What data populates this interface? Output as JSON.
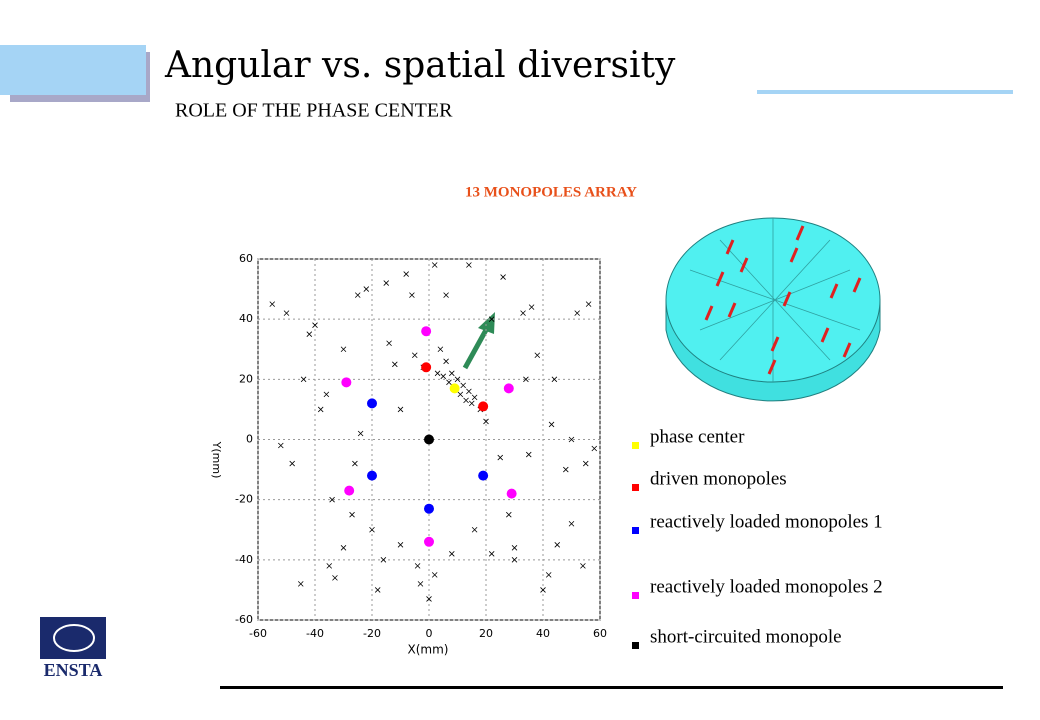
{
  "header": {
    "title": "Angular vs. spatial diversity",
    "subtitle": "ROLE OF THE PHASE CENTER"
  },
  "logo": {
    "text": "ENSTA"
  },
  "chart_data": {
    "type": "scatter",
    "title": "13 MONOPOLES ARRAY",
    "x_label": "X(mm)",
    "y_label": "Y(mm)",
    "xlim": [
      -60,
      60
    ],
    "xticks": [
      -60,
      -40,
      -20,
      0,
      20,
      40,
      60
    ],
    "ylim": [
      -60,
      60
    ],
    "yticks": [
      -60,
      -40,
      -20,
      0,
      20,
      40,
      60
    ],
    "grid": true,
    "series": [
      {
        "color": "#000000",
        "marker": "x",
        "x": [
          -55,
          -50,
          -45,
          -40,
          -38,
          -35,
          -33,
          -30,
          -27,
          -25,
          -22,
          -20,
          -18,
          -15,
          -12,
          -10,
          -8,
          -5,
          -3,
          0,
          2,
          4,
          6,
          8,
          10,
          12,
          14,
          16,
          18,
          20,
          22,
          25,
          28,
          30,
          33,
          35,
          38,
          40,
          43,
          45,
          48,
          50,
          52,
          55,
          58,
          -48,
          -42,
          -36,
          -30,
          -24,
          -16,
          -10,
          -6,
          2,
          8,
          14,
          22,
          30,
          36,
          44,
          50,
          56,
          -52,
          -44,
          -34,
          -26,
          -14,
          -4,
          6,
          16,
          26,
          34,
          42,
          54,
          3,
          5,
          7,
          9,
          11,
          13,
          15,
          -2
        ],
        "values": [
          45,
          42,
          -48,
          38,
          10,
          -42,
          -46,
          30,
          -25,
          48,
          50,
          -30,
          -50,
          52,
          25,
          -35,
          55,
          28,
          -48,
          -53,
          -45,
          30,
          26,
          22,
          20,
          18,
          16,
          14,
          10,
          6,
          40,
          -6,
          -25,
          -40,
          42,
          -5,
          28,
          -50,
          5,
          -35,
          -10,
          0,
          42,
          -8,
          -3,
          -8,
          35,
          15,
          -36,
          2,
          -40,
          10,
          48,
          58,
          -38,
          58,
          -38,
          -36,
          44,
          20,
          -28,
          45,
          -2,
          20,
          -20,
          -8,
          32,
          -42,
          48,
          -30,
          54,
          20,
          -45,
          -42,
          22,
          21,
          19,
          17,
          15,
          13,
          12,
          24
        ]
      },
      {
        "name": "phase center",
        "color": "#ffff00",
        "marker": "dot",
        "x": [
          9
        ],
        "values": [
          17
        ]
      },
      {
        "name": "driven monopoles",
        "color": "#ff0000",
        "marker": "dot",
        "x": [
          -1,
          19
        ],
        "values": [
          24,
          11
        ]
      },
      {
        "name": "reactively loaded monopoles 1",
        "color": "#0000ff",
        "marker": "dot",
        "x": [
          -20,
          -20,
          19,
          0
        ],
        "values": [
          12,
          -12,
          -12,
          -23
        ]
      },
      {
        "name": "reactively loaded monopoles 2",
        "color": "#ff00ff",
        "marker": "dot",
        "x": [
          -29,
          -1,
          28,
          -28,
          29,
          0
        ],
        "values": [
          19,
          36,
          17,
          -17,
          -18,
          -34
        ]
      },
      {
        "name": "short-circuited monopole",
        "color": "#000000",
        "marker": "dot",
        "x": [
          0
        ],
        "values": [
          0
        ]
      }
    ]
  }
}
